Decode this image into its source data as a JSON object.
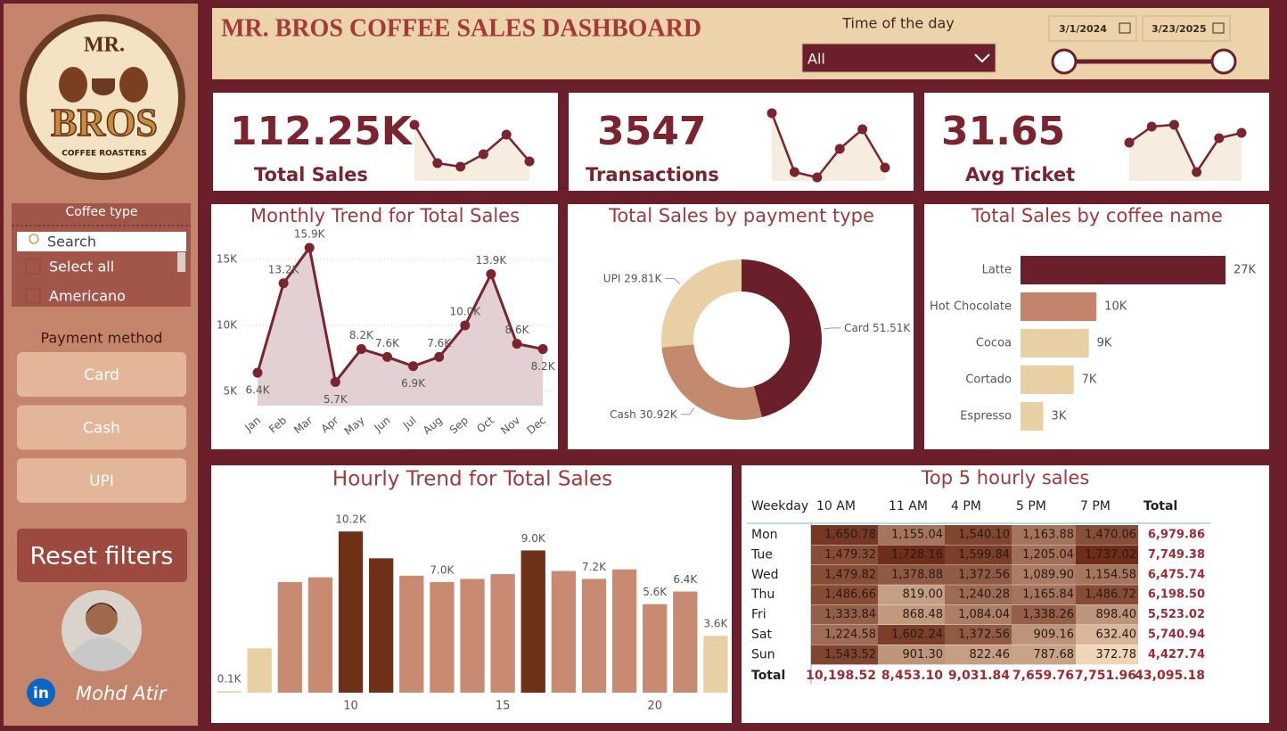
{
  "header": {
    "title": "MR. BROS COFFEE SALES DASHBOARD",
    "time_label": "Time of the day",
    "time_value": "All",
    "date_start": "3/1/2024",
    "date_end": "3/23/2025"
  },
  "sidebar": {
    "logo": {
      "top": "MR.",
      "main": "BROS",
      "sub": "COFFEE ROASTERS"
    },
    "coffee_slicer": {
      "title": "Coffee type",
      "search": "Search",
      "items": [
        "Select all",
        "Americano"
      ]
    },
    "payment": {
      "title": "Payment method",
      "buttons": [
        "Card",
        "Cash",
        "UPI"
      ]
    },
    "reset": "Reset filters",
    "linkedin": "in",
    "author": "Mohd Atir"
  },
  "kpis": [
    {
      "value": "112.25K",
      "label": "Total Sales",
      "spark": [
        63,
        20,
        16,
        30,
        52,
        22
      ],
      "spark_ylim": [
        0,
        80
      ]
    },
    {
      "value": "3547",
      "label": "Transactions",
      "spark": [
        76,
        10,
        4,
        36,
        58,
        15
      ],
      "spark_ylim": [
        0,
        80
      ]
    },
    {
      "value": "31.65",
      "label": "Avg Ticket",
      "spark": [
        43,
        61,
        63,
        10,
        48,
        54
      ],
      "spark_ylim": [
        0,
        80
      ]
    }
  ],
  "chart_data": [
    {
      "type": "line",
      "title": "Monthly Trend for Total Sales",
      "categories": [
        "Jan",
        "Feb",
        "Mar",
        "Apr",
        "May",
        "Jun",
        "Jul",
        "Aug",
        "Sep",
        "Oct",
        "Nov",
        "Dec"
      ],
      "values": [
        6400,
        13200,
        15900,
        5700,
        8200,
        7600,
        6900,
        7600,
        10000,
        13900,
        8600,
        8200
      ],
      "value_labels": [
        "6.4K",
        "13.2K",
        "15.9K",
        "5.7K",
        "8.2K",
        "7.6K",
        "6.9K",
        "7.6K",
        "10.0K",
        "13.9K",
        "8.6K",
        "8.2K"
      ],
      "color": "#7a2430",
      "area_color": "#e3d0d2",
      "ylim": [
        3900,
        16100
      ],
      "yticks": [
        {
          "value": 5000,
          "label": "5K"
        },
        {
          "value": 10000,
          "label": "10K"
        },
        {
          "value": 15000,
          "label": "15K"
        }
      ],
      "grid": true
    },
    {
      "type": "donut",
      "title": "Total Sales by payment type",
      "categories": [
        "Card",
        "Cash",
        "UPI"
      ],
      "values": [
        51510,
        30920,
        29810
      ],
      "value_labels": [
        "51.51K",
        "30.92K",
        "29.81K"
      ],
      "colors": [
        "#6b1f2a",
        "#c48a6e",
        "#e8cfa4"
      ]
    },
    {
      "type": "hbar",
      "title": "Total Sales by coffee name",
      "categories": [
        "Latte",
        "Hot Chocolate",
        "Cocoa",
        "Cortado",
        "Espresso"
      ],
      "values": [
        27000,
        10000,
        9000,
        7000,
        3000
      ],
      "value_labels": [
        "27K",
        "10K",
        "9K",
        "7K",
        "3K"
      ],
      "colors": [
        "#6b1f2a",
        "#c4846c",
        "#e8cfa4",
        "#e8cfa4",
        "#e8cfa4"
      ],
      "xlim": [
        0,
        27000
      ]
    },
    {
      "type": "bar",
      "title": "Hourly Trend for Total Sales",
      "x": [
        6,
        7,
        8,
        9,
        10,
        11,
        12,
        13,
        14,
        15,
        16,
        17,
        18,
        19,
        20,
        21,
        22
      ],
      "values": [
        100,
        2800,
        7000,
        7300,
        10200,
        8500,
        7400,
        7000,
        7200,
        7500,
        9000,
        7700,
        7200,
        7800,
        5600,
        6400,
        3600
      ],
      "value_labels": [
        "0.1K",
        null,
        null,
        null,
        "10.2K",
        null,
        null,
        "7.0K",
        null,
        null,
        "9.0K",
        null,
        "7.2K",
        null,
        "5.6K",
        "6.4K",
        "3.6K"
      ],
      "colors": [
        "#e8cfa4",
        "#e8cfa4",
        "#c98a72",
        "#c98a72",
        "#6e3118",
        "#6e3118",
        "#c98a72",
        "#c98a72",
        "#c98a72",
        "#c98a72",
        "#6e3118",
        "#c98a72",
        "#c98a72",
        "#c98a72",
        "#c98a72",
        "#c98a72",
        "#e8cfa4"
      ],
      "xlim": [
        5.5,
        22.5
      ],
      "xticks": [
        10,
        15,
        20
      ],
      "ylim": [
        0,
        11000
      ]
    }
  ],
  "table": {
    "title": "Top 5 hourly sales",
    "columns": [
      "Weekday",
      "10 AM",
      "11 AM",
      "4 PM",
      "5 PM",
      "7 PM",
      "Total"
    ],
    "rows": [
      [
        "Mon",
        "1,650.78",
        "1,155.04",
        "1,540.10",
        "1,163.88",
        "1,470.06",
        "6,979.86"
      ],
      [
        "Tue",
        "1,479.32",
        "1,728.16",
        "1,599.84",
        "1,205.04",
        "1,737.02",
        "7,749.38"
      ],
      [
        "Wed",
        "1,479.82",
        "1,378.88",
        "1,372.56",
        "1,089.90",
        "1,154.58",
        "6,475.74"
      ],
      [
        "Thu",
        "1,486.66",
        "819.00",
        "1,240.28",
        "1,165.84",
        "1,486.72",
        "6,198.50"
      ],
      [
        "Fri",
        "1,333.84",
        "868.48",
        "1,084.04",
        "1,338.26",
        "898.40",
        "5,523.02"
      ],
      [
        "Sat",
        "1,224.58",
        "1,602.24",
        "1,372.56",
        "909.16",
        "632.40",
        "5,740.94"
      ],
      [
        "Sun",
        "1,543.52",
        "901.30",
        "822.46",
        "787.68",
        "372.78",
        "4,427.74"
      ]
    ],
    "total": [
      "Total",
      "10,198.52",
      "8,453.10",
      "9,031.84",
      "7,659.76",
      "7,751.96",
      "43,095.18"
    ]
  }
}
